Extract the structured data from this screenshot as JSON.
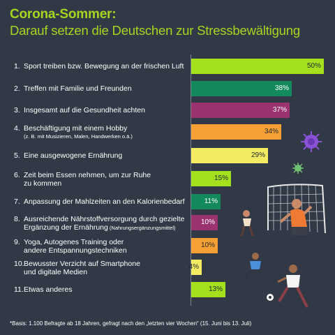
{
  "header": {
    "title": "Corona-Sommer:",
    "subtitle": "Darauf setzen die Deutschen zur Stressbewältigung"
  },
  "chart_data": {
    "type": "bar",
    "orientation": "horizontal",
    "title": "Corona-Sommer:",
    "subtitle": "Darauf setzen die Deutschen zur Stressbewältigung",
    "xlim": [
      0,
      50
    ],
    "categories": [
      "Sport treiben bzw. Bewegung an der frischen Luft",
      "Treffen mit Familie und Freunden",
      "Insgesamt auf die Gesundheit achten",
      "Beschäftigung mit einem Hobby",
      "Eine ausgewogene Ernährung",
      "Zeit beim Essen nehmen, um zur Ruhe zu kommen",
      "Anpassung der Mahlzeiten an den Kalorienbedarf",
      "Ausreichende Nährstoffversorgung durch gezielte Ergänzung der Ernährung",
      "Yoga, Autogenes Training oder andere Entspannungstechniken",
      "Bewusster Verzicht auf Smartphone und digitale Medien",
      "Etwas anderes"
    ],
    "values": [
      50,
      38,
      37,
      34,
      29,
      15,
      11,
      10,
      10,
      4,
      13
    ],
    "value_labels": [
      "50%",
      "38%",
      "37%",
      "34%",
      "29%",
      "15%",
      "11%",
      "10%",
      "10%",
      "4%",
      "13%"
    ],
    "colors": [
      "#a4e01c",
      "#138a5e",
      "#9c3371",
      "#f6a033",
      "#f3ec62",
      "#a4e01c",
      "#138a5e",
      "#9c3371",
      "#f6a033",
      "#f3ec62",
      "#a4e01c"
    ]
  },
  "items": [
    {
      "num": "1.",
      "lines": [
        "Sport treiben bzw. Bewegung an der frischen Luft"
      ],
      "small": ""
    },
    {
      "num": "2.",
      "lines": [
        "Treffen mit Familie und Freunden"
      ],
      "small": ""
    },
    {
      "num": "3.",
      "lines": [
        "Insgesamt auf die Gesundheit achten"
      ],
      "small": ""
    },
    {
      "num": "4.",
      "lines": [
        "Beschäftigung mit einem Hobby"
      ],
      "small": "(z. B. mit Musizieren, Malen, Handwerken o.ä.)"
    },
    {
      "num": "5.",
      "lines": [
        "Eine ausgewogene Ernährung"
      ],
      "small": ""
    },
    {
      "num": "6.",
      "lines": [
        "Zeit beim Essen nehmen, um zur Ruhe",
        "zu kommen"
      ],
      "small": ""
    },
    {
      "num": "7.",
      "lines": [
        "Anpassung der Mahlzeiten an den Kalorienbedarf"
      ],
      "small": ""
    },
    {
      "num": "8.",
      "lines": [
        "Ausreichende Nährstoffversorgung durch gezielte",
        "Ergänzung der Ernährung"
      ],
      "small": "(Nahrungsergänzungsmittel)"
    },
    {
      "num": "9.",
      "lines": [
        "Yoga, Autogenes Training oder",
        "andere Entspannungstechniken"
      ],
      "small": ""
    },
    {
      "num": "10.",
      "lines": [
        "Bewusster Verzicht auf Smartphone",
        "und digitale Medien"
      ],
      "small": ""
    },
    {
      "num": "11.",
      "lines": [
        "Etwas anderes"
      ],
      "small": ""
    }
  ],
  "footnote": "*Basis: 1.100 Befragte ab 18 Jahren, gefragt nach den „letzten vier Wochen“ (15. Juni bis 13. Juli)"
}
